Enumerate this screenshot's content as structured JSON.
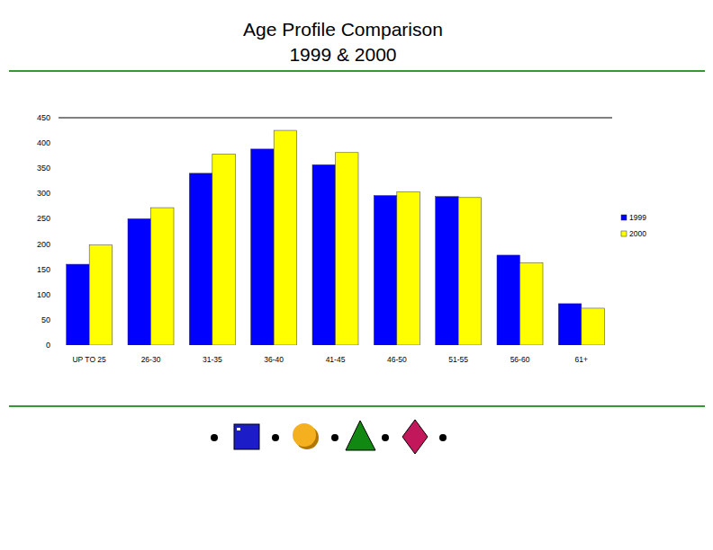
{
  "chart_data": {
    "type": "bar",
    "title": "Age Profile Comparison",
    "subtitle": "1999 & 2000",
    "categories": [
      "UP TO 25",
      "26-30",
      "31-35",
      "36-40",
      "41-45",
      "46-50",
      "51-55",
      "56-60",
      "61+"
    ],
    "series": [
      {
        "name": "1999",
        "color": "#0000ff",
        "values": [
          160,
          250,
          340,
          388,
          357,
          296,
          294,
          178,
          82
        ]
      },
      {
        "name": "2000",
        "color": "#ffff00",
        "values": [
          198,
          272,
          378,
          425,
          381,
          303,
          292,
          163,
          73
        ]
      }
    ],
    "ylim": [
      0,
      450
    ],
    "yticks": [
      0,
      50,
      100,
      150,
      200,
      250,
      300,
      350,
      400,
      450
    ],
    "grid": false,
    "legend": "right"
  }
}
